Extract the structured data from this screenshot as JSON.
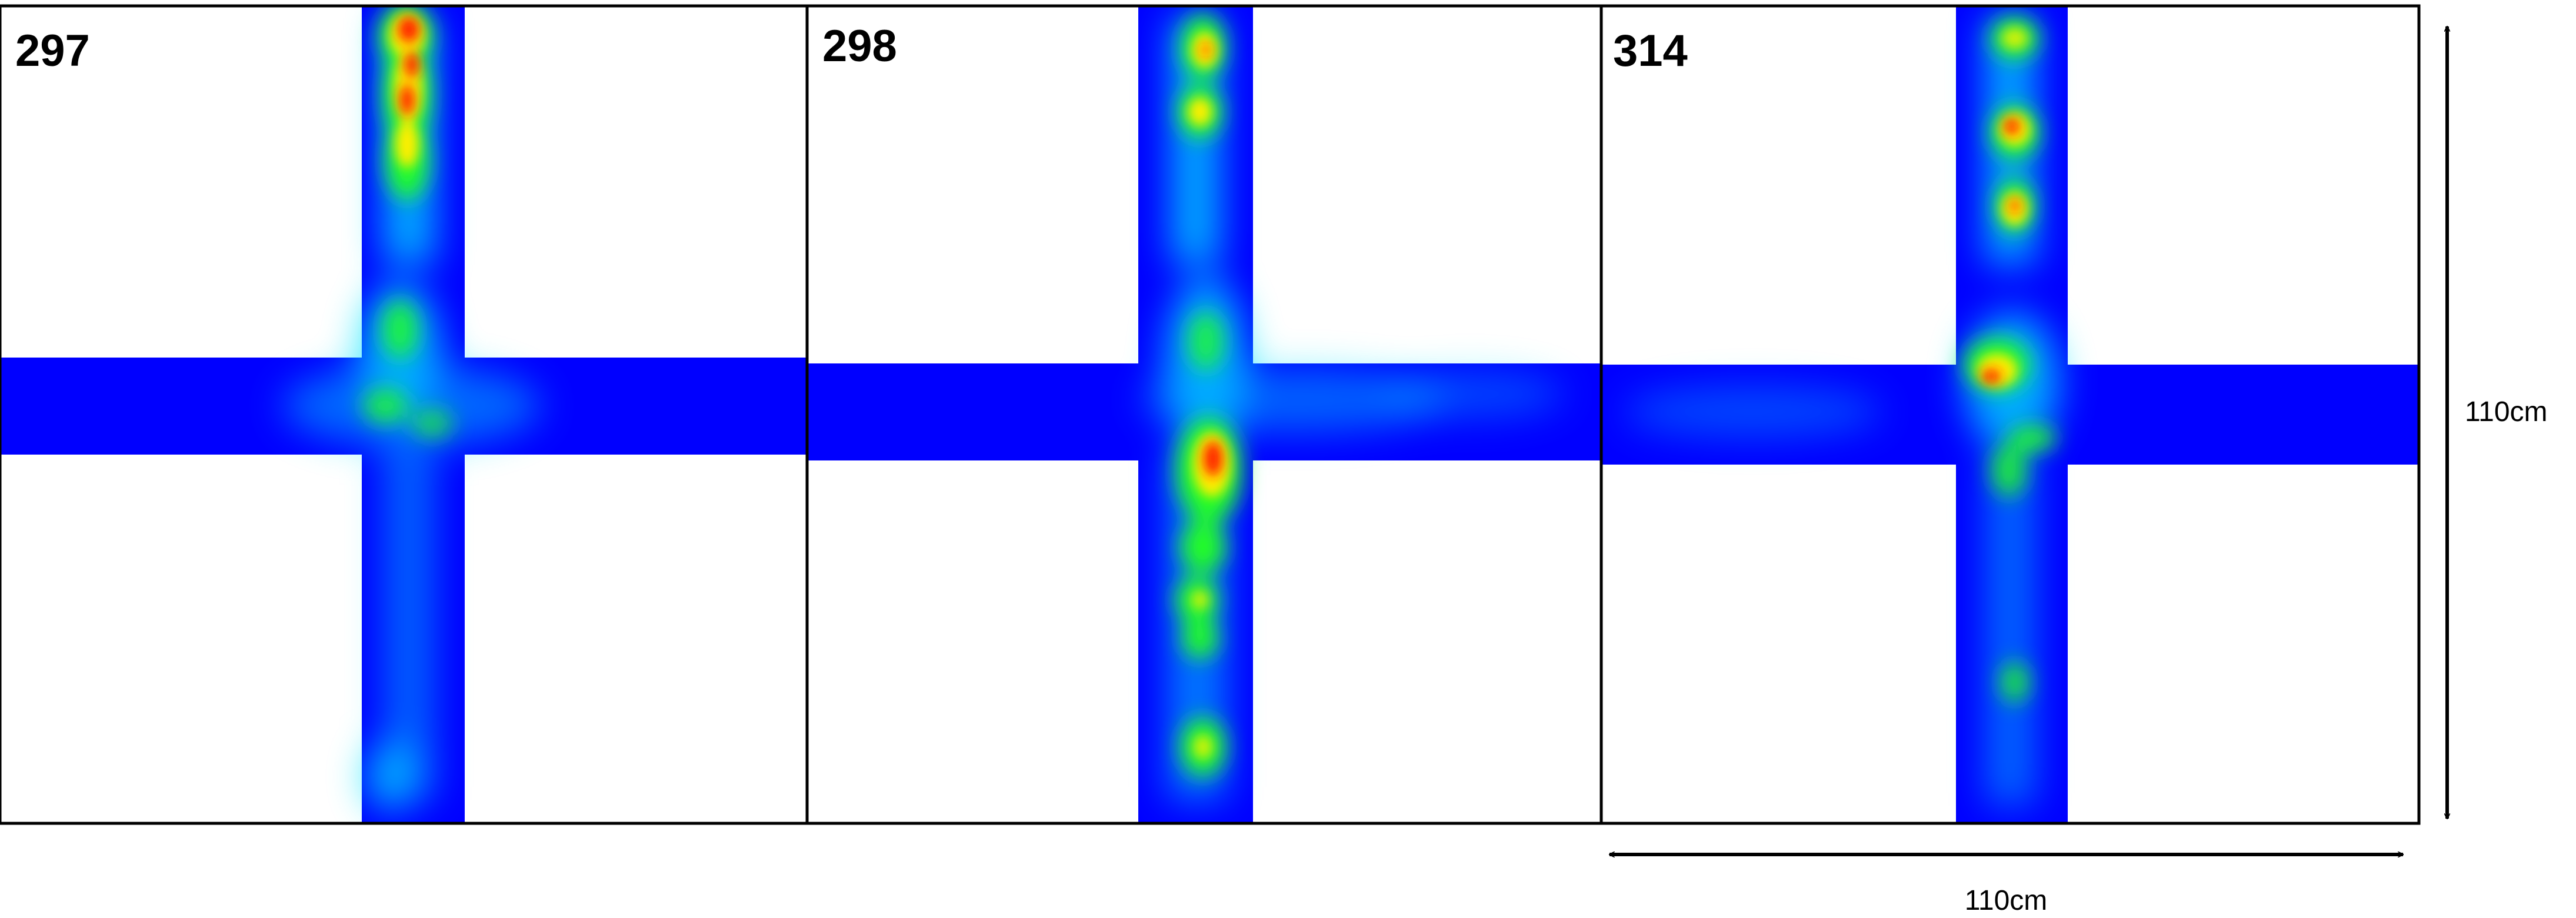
{
  "panels": [
    {
      "label": "297"
    },
    {
      "label": "298"
    },
    {
      "label": "314"
    }
  ],
  "dimensions": {
    "vertical_label": "110cm",
    "horizontal_label": "110cm"
  },
  "colors": {
    "maze_arm": "#0000ff",
    "heat_low": "#00e5ff",
    "heat_mid": "#22ff22",
    "heat_high": "#ffee00",
    "heat_peak": "#ff1a00",
    "frame": "#000000",
    "background": "#ffffff"
  }
}
